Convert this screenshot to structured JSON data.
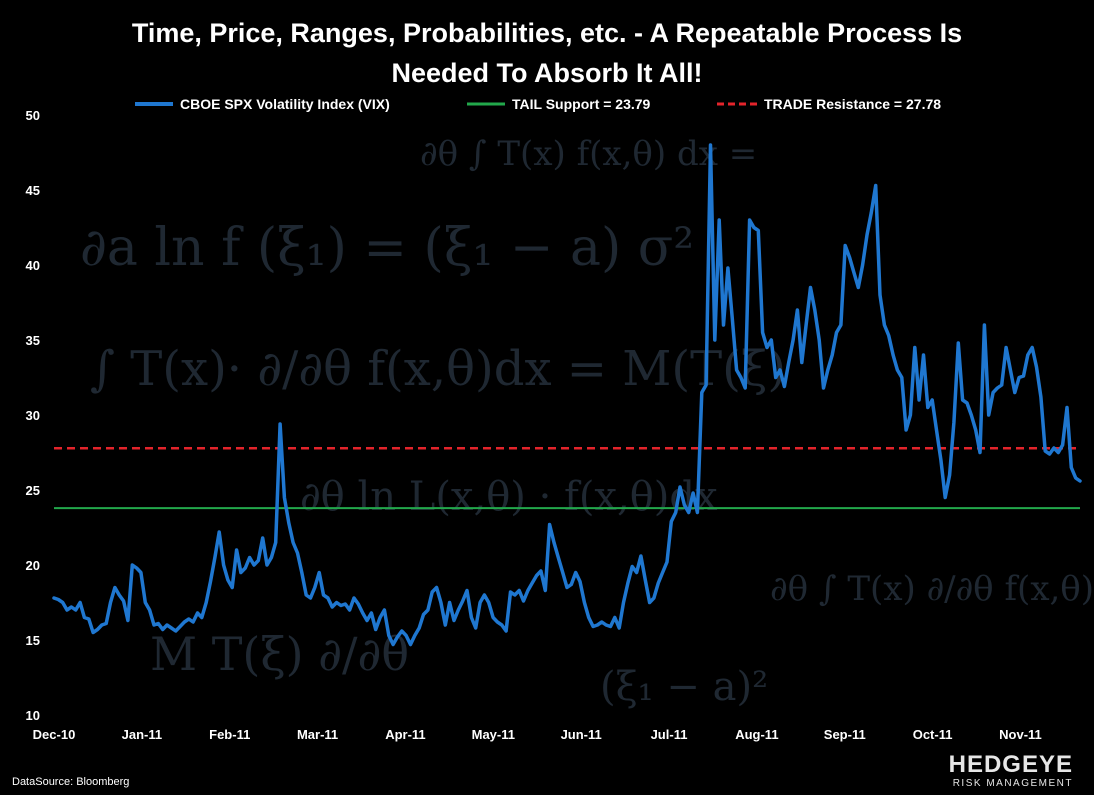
{
  "chart_data": {
    "type": "line",
    "title": "Time, Price, Ranges, Probabilities, etc. - A Repeatable Process Is Needed To Absorb It All!",
    "title_lines": [
      "Time, Price, Ranges, Probabilities, etc. - A Repeatable Process Is",
      "Needed To Absorb It All!"
    ],
    "xlabel": "",
    "ylabel": "",
    "ylim": [
      10,
      50
    ],
    "y_ticks": [
      10,
      15,
      20,
      25,
      30,
      35,
      40,
      45,
      50
    ],
    "x_ticks": [
      "Dec-10",
      "Jan-11",
      "Feb-11",
      "Mar-11",
      "Apr-11",
      "May-11",
      "Jun-11",
      "Jul-11",
      "Aug-11",
      "Sep-11",
      "Oct-11",
      "Nov-11"
    ],
    "grid": false,
    "legend_position": "top",
    "series": [
      {
        "name": "CBOE SPX Volatility Index (VIX)",
        "color": "#1f77d0",
        "style": "solid",
        "values": [
          17.8,
          17.7,
          17.5,
          17.0,
          17.2,
          17.0,
          17.5,
          16.5,
          16.4,
          15.5,
          15.7,
          16.0,
          16.1,
          17.5,
          18.5,
          18.0,
          17.6,
          16.3,
          20.0,
          19.8,
          19.5,
          17.5,
          17.0,
          16.0,
          16.1,
          15.7,
          16.0,
          15.8,
          15.6,
          15.9,
          16.2,
          16.4,
          16.2,
          16.8,
          16.5,
          17.5,
          18.9,
          20.5,
          22.2,
          20.0,
          19.0,
          18.5,
          21.0,
          19.5,
          19.8,
          20.5,
          20.0,
          20.3,
          21.8,
          20.0,
          20.5,
          21.5,
          29.4,
          24.5,
          22.8,
          21.5,
          20.8,
          19.5,
          18.0,
          17.8,
          18.5,
          19.5,
          18.0,
          17.8,
          17.2,
          17.5,
          17.3,
          17.4,
          17.0,
          17.8,
          17.4,
          16.8,
          16.3,
          16.8,
          15.7,
          16.5,
          17.0,
          15.3,
          14.7,
          15.2,
          15.6,
          15.3,
          14.7,
          15.3,
          15.8,
          16.7,
          17.0,
          18.2,
          18.5,
          17.5,
          16.0,
          17.5,
          16.3,
          17.0,
          17.6,
          18.3,
          16.5,
          15.8,
          17.5,
          18.0,
          17.5,
          16.5,
          16.2,
          16.0,
          15.6,
          18.2,
          18.0,
          18.3,
          17.6,
          18.3,
          18.8,
          19.3,
          19.6,
          18.3,
          22.7,
          21.5,
          20.5,
          19.5,
          18.5,
          18.7,
          19.5,
          18.9,
          17.5,
          16.5,
          15.9,
          16.0,
          16.2,
          16.0,
          15.9,
          16.5,
          15.8,
          17.5,
          18.8,
          19.9,
          19.5,
          20.6,
          19.0,
          17.5,
          17.8,
          18.8,
          19.5,
          20.2,
          22.9,
          23.5,
          25.2,
          24.0,
          23.5,
          24.8,
          23.5,
          31.5,
          32.0,
          48.0,
          35.0,
          43.0,
          36.0,
          39.8,
          36.5,
          33.0,
          32.5,
          31.8,
          43.0,
          42.5,
          42.3,
          35.5,
          34.5,
          35.0,
          32.5,
          33.0,
          31.9,
          33.5,
          35.0,
          37.0,
          33.5,
          36.0,
          38.5,
          37.0,
          35.0,
          31.8,
          33.0,
          34.0,
          35.5,
          36.0,
          41.3,
          40.5,
          39.5,
          38.5,
          40.0,
          42.0,
          43.5,
          45.3,
          38.0,
          36.0,
          35.3,
          34.0,
          33.0,
          32.5,
          29.0,
          30.0,
          34.5,
          31.0,
          34.0,
          30.5,
          31.0,
          29.0,
          27.0,
          24.5,
          26.0,
          29.5,
          34.8,
          31.0,
          30.8,
          30.0,
          29.0,
          27.5,
          36.0,
          30.0,
          31.5,
          31.8,
          32.0,
          34.5,
          33.0,
          31.5,
          32.5,
          32.6,
          34.0,
          34.5,
          33.2,
          31.2,
          27.6,
          27.4,
          27.8,
          27.5,
          28.0,
          30.5,
          26.5,
          25.8,
          25.6
        ]
      },
      {
        "name": "TAIL Support = 23.79",
        "color": "#22a84b",
        "style": "solid",
        "constant": 23.79
      },
      {
        "name": "TRADE Resistance = 27.78",
        "color": "#e3242b",
        "style": "dashed",
        "constant": 27.78
      }
    ]
  },
  "footer": {
    "source": "DataSource: Bloomberg",
    "logo_main": "HEDGEYE",
    "logo_sub": "RISK MANAGEMENT"
  },
  "background_formulas": [
    "∂θ ∫ T(x) f(x,θ) dx =",
    "∂a  ln f (ξ₁) = (ξ₁ − a)  σ²",
    "∫ T(x)· ∂/∂θ f(x,θ)dx = M(T(ξ)",
    "∂θ  ln L(x,θ) · f(x,θ)dx",
    "M T(ξ) ∂/∂θ",
    "∂θ  ∫ T(x) ∂/∂θ f(x,θ)dx",
    "(ξ₁ − a)²"
  ]
}
